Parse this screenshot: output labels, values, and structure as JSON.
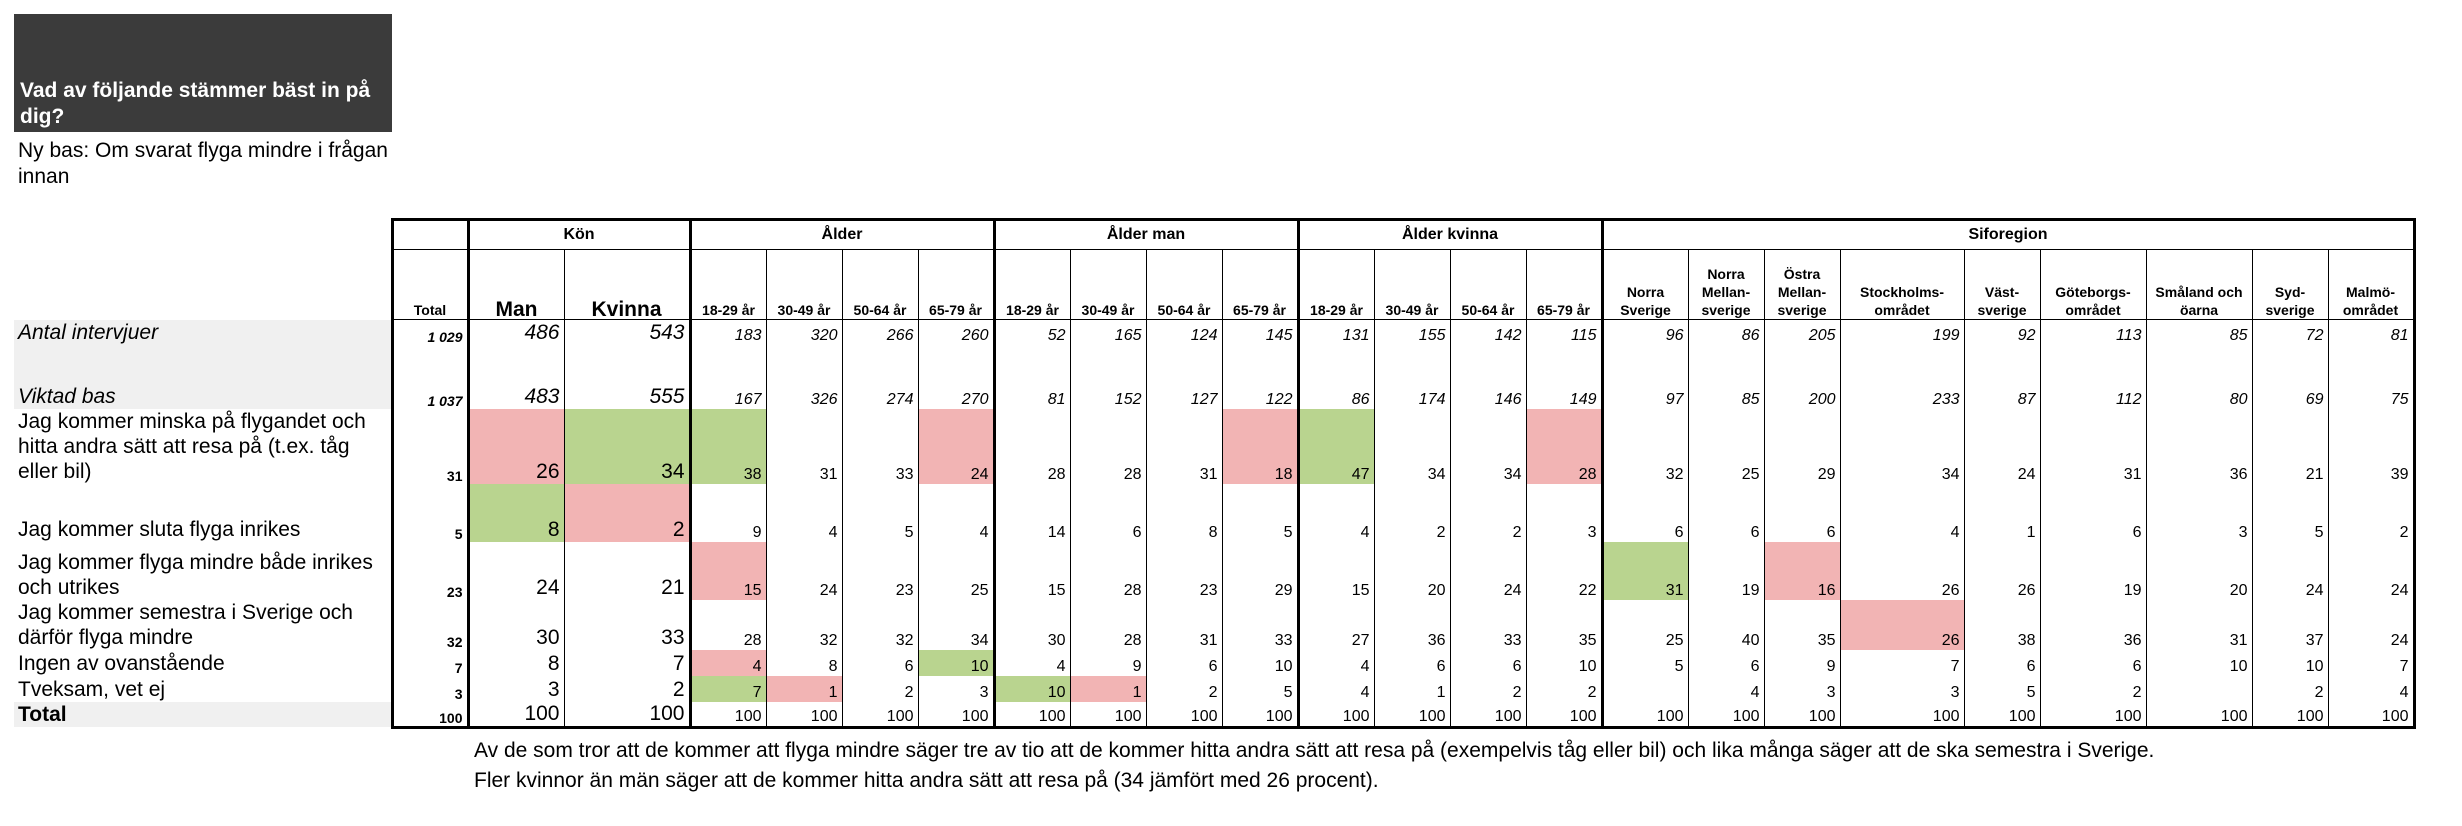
{
  "title": "Vad av följande stämmer bäst in på dig?",
  "subtitle": "Ny bas: Om svarat flyga mindre i frågan innan",
  "groups": {
    "kon": "Kön",
    "alder": "Ålder",
    "alder_man": "Ålder man",
    "alder_kvinna": "Ålder kvinna",
    "siforegion": "Siforegion"
  },
  "columns": [
    "Total",
    "Man",
    "Kvinna",
    "18-29 år",
    "30-49 år",
    "50-64 år",
    "65-79 år",
    "18-29 år",
    "30-49 år",
    "50-64 år",
    "65-79 år",
    "18-29 år",
    "30-49 år",
    "50-64 år",
    "65-79 år",
    "Norra Sverige",
    "Norra Mellan-sverige",
    "Östra Mellan-sverige",
    "Stockholms-området",
    "Väst-sverige",
    "Göteborgs-området",
    "Småland och öarna",
    "Syd-sverige",
    "Malmö-området"
  ],
  "rows": [
    {
      "label": "Antal intervjuer",
      "values": [
        "1 029",
        "486",
        "543",
        "183",
        "320",
        "266",
        "260",
        "52",
        "165",
        "124",
        "145",
        "131",
        "155",
        "142",
        "115",
        "96",
        "86",
        "205",
        "199",
        "92",
        "113",
        "85",
        "72",
        "81"
      ]
    },
    {
      "label": "Viktad bas",
      "values": [
        "1 037",
        "483",
        "555",
        "167",
        "326",
        "274",
        "270",
        "81",
        "152",
        "127",
        "122",
        "86",
        "174",
        "146",
        "149",
        "97",
        "85",
        "200",
        "233",
        "87",
        "112",
        "80",
        "69",
        "75"
      ]
    },
    {
      "label": "Jag kommer minska på flygandet och hitta andra sätt att resa på (t.ex. tåg eller bil)",
      "values": [
        "31",
        "26",
        "34",
        "38",
        "31",
        "33",
        "24",
        "28",
        "28",
        "31",
        "18",
        "47",
        "34",
        "34",
        "28",
        "32",
        "25",
        "29",
        "34",
        "24",
        "31",
        "36",
        "21",
        "39"
      ]
    },
    {
      "label": "Jag kommer sluta flyga inrikes",
      "values": [
        "5",
        "8",
        "2",
        "9",
        "4",
        "5",
        "4",
        "14",
        "6",
        "8",
        "5",
        "4",
        "2",
        "2",
        "3",
        "6",
        "6",
        "6",
        "4",
        "1",
        "6",
        "3",
        "5",
        "2"
      ]
    },
    {
      "label": "Jag kommer flyga mindre både inrikes och utrikes",
      "values": [
        "23",
        "24",
        "21",
        "15",
        "24",
        "23",
        "25",
        "15",
        "28",
        "23",
        "29",
        "15",
        "20",
        "24",
        "22",
        "31",
        "19",
        "16",
        "26",
        "26",
        "19",
        "20",
        "24",
        "24"
      ]
    },
    {
      "label": "Jag kommer semestra i Sverige och därför flyga mindre",
      "values": [
        "32",
        "30",
        "33",
        "28",
        "32",
        "32",
        "34",
        "30",
        "28",
        "31",
        "33",
        "27",
        "36",
        "33",
        "35",
        "25",
        "40",
        "35",
        "26",
        "38",
        "36",
        "31",
        "37",
        "24"
      ]
    },
    {
      "label": "Ingen av ovanstående",
      "values": [
        "7",
        "8",
        "7",
        "4",
        "8",
        "6",
        "10",
        "4",
        "9",
        "6",
        "10",
        "4",
        "6",
        "6",
        "10",
        "5",
        "6",
        "9",
        "7",
        "6",
        "6",
        "10",
        "10",
        "7"
      ]
    },
    {
      "label": "Tveksam, vet ej",
      "values": [
        "3",
        "3",
        "2",
        "7",
        "1",
        "2",
        "3",
        "10",
        "1",
        "2",
        "5",
        "4",
        "1",
        "2",
        "2",
        "",
        "4",
        "3",
        "3",
        "5",
        "2",
        "",
        "2",
        "4"
      ]
    },
    {
      "label": "Total",
      "values": [
        "100",
        "100",
        "100",
        "100",
        "100",
        "100",
        "100",
        "100",
        "100",
        "100",
        "100",
        "100",
        "100",
        "100",
        "100",
        "100",
        "100",
        "100",
        "100",
        "100",
        "100",
        "100",
        "100",
        "100"
      ]
    }
  ],
  "highlight_colors": {
    "green": "#b9d48f",
    "red": "#f2b4b4"
  },
  "highlights": {
    "2": {
      "1": "red",
      "2": "green",
      "3": "green",
      "6": "red",
      "10": "red",
      "11": "green",
      "14": "red"
    },
    "3": {
      "1": "green",
      "2": "red"
    },
    "4": {
      "3": "red",
      "15": "green",
      "17": "red"
    },
    "5": {
      "18": "red"
    },
    "6": {
      "3": "red",
      "6": "green"
    },
    "7": {
      "3": "green",
      "4": "red",
      "7": "green",
      "8": "red"
    }
  },
  "note_lines": [
    "Av de som tror att de kommer att flyga mindre säger tre av tio att de kommer hitta  andra sätt att resa på (exempelvis tåg eller bil) och lika många säger att de ska semestra i Sverige.",
    "Fler kvinnor än män säger att de kommer hitta andra sätt att resa på (34 jämfört med 26 procent)."
  ]
}
